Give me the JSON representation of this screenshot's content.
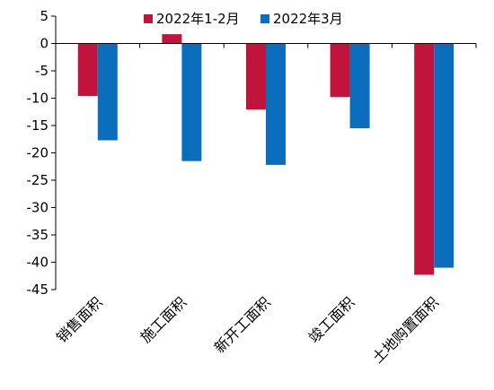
{
  "chart_data": {
    "type": "bar",
    "categories": [
      "销售面积",
      "施工面积",
      "新开工面积",
      "竣工面积",
      "土地购置面积"
    ],
    "series": [
      {
        "name": "2022年1-2月",
        "color": "#C0143C",
        "values": [
          -9.6,
          1.7,
          -12.1,
          -9.8,
          -42.3
        ]
      },
      {
        "name": "2022年3月",
        "color": "#0A6EBD",
        "values": [
          -17.7,
          -21.5,
          -22.2,
          -15.5,
          -41.0
        ]
      }
    ],
    "ylim": [
      -45,
      5
    ],
    "yticks": [
      5,
      0,
      -5,
      -10,
      -15,
      -20,
      -25,
      -30,
      -35,
      -40,
      -45
    ],
    "legend_position": "top",
    "grid": false,
    "title": "",
    "xlabel": "",
    "ylabel": ""
  }
}
